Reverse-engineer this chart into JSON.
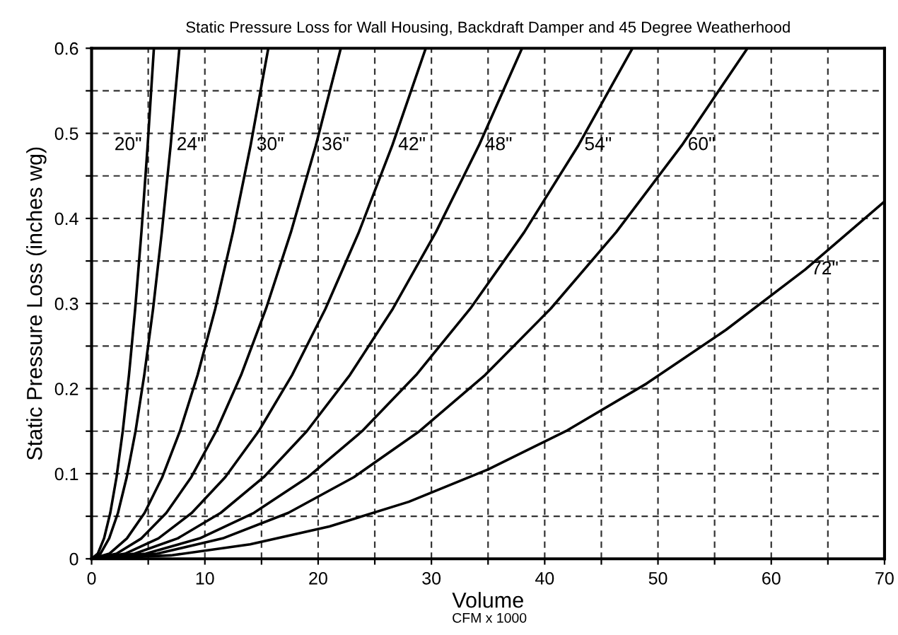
{
  "chart_data": {
    "type": "line",
    "title": "Static Pressure Loss for Wall Housing, Backdraft Damper and 45 Degree Weatherhood",
    "xlabel": "Volume",
    "ylabel": "Static Pressure Loss (inches wg)",
    "xlim": [
      0,
      70
    ],
    "ylim": [
      0,
      0.6
    ],
    "xticks": [
      0,
      {
        "value": 5,
        "label": null
      },
      10,
      {
        "value": 15,
        "label": null
      },
      20,
      {
        "value": 25,
        "label": null
      },
      30,
      {
        "value": 35,
        "label": null
      },
      40,
      {
        "value": 45,
        "label": null
      },
      50,
      {
        "value": 55,
        "label": null
      },
      60,
      {
        "value": 65,
        "label": null
      },
      70
    ],
    "yticks": [
      0,
      {
        "value": 0.05,
        "label": null
      },
      0.1,
      {
        "value": 0.15,
        "label": null
      },
      0.2,
      {
        "value": 0.25,
        "label": null
      },
      0.3,
      {
        "value": 0.35,
        "label": null
      },
      0.4,
      {
        "value": 0.45,
        "label": null
      },
      0.5,
      {
        "value": 0.55,
        "label": null
      },
      0.6
    ],
    "grid": true,
    "line_style": "solid",
    "marker": "none",
    "series": [
      {
        "name": "20\"",
        "color": "#000000",
        "x": [
          0,
          0.55,
          1.1,
          1.65,
          2.2,
          2.75,
          3.3,
          3.85,
          4.4,
          4.95,
          5.5
        ],
        "values": [
          0,
          0.006,
          0.024,
          0.054,
          0.096,
          0.15,
          0.216,
          0.294,
          0.384,
          0.486,
          0.6
        ]
      },
      {
        "name": "24\"",
        "color": "#000000",
        "x": [
          0,
          0.78,
          1.55,
          2.33,
          3.1,
          3.88,
          4.65,
          5.43,
          6.2,
          6.98,
          7.75
        ],
        "values": [
          0,
          0.006,
          0.024,
          0.054,
          0.096,
          0.15,
          0.216,
          0.294,
          0.384,
          0.486,
          0.6
        ]
      },
      {
        "name": "30\"",
        "color": "#000000",
        "x": [
          0,
          1.56,
          3.12,
          4.68,
          6.24,
          7.8,
          9.36,
          10.92,
          12.48,
          14.04,
          15.6
        ],
        "values": [
          0,
          0.006,
          0.024,
          0.054,
          0.096,
          0.15,
          0.216,
          0.294,
          0.384,
          0.486,
          0.6
        ]
      },
      {
        "name": "36\"",
        "color": "#000000",
        "x": [
          0,
          2.2,
          4.4,
          6.6,
          8.8,
          11,
          13.2,
          15.4,
          17.6,
          19.8,
          22
        ],
        "values": [
          0,
          0.006,
          0.024,
          0.054,
          0.096,
          0.15,
          0.216,
          0.294,
          0.384,
          0.486,
          0.6
        ]
      },
      {
        "name": "42\"",
        "color": "#000000",
        "x": [
          0,
          2.95,
          5.9,
          8.85,
          11.8,
          14.75,
          17.7,
          20.65,
          23.6,
          26.55,
          29.5
        ],
        "values": [
          0,
          0.006,
          0.024,
          0.054,
          0.096,
          0.15,
          0.216,
          0.294,
          0.384,
          0.486,
          0.6
        ]
      },
      {
        "name": "48\"",
        "color": "#000000",
        "x": [
          0,
          3.8,
          7.6,
          11.4,
          15.2,
          19,
          22.8,
          26.6,
          30.4,
          34.2,
          38
        ],
        "values": [
          0,
          0.006,
          0.024,
          0.054,
          0.096,
          0.15,
          0.216,
          0.294,
          0.384,
          0.486,
          0.6
        ]
      },
      {
        "name": "54\"",
        "color": "#000000",
        "x": [
          0,
          4.78,
          9.55,
          14.33,
          19.1,
          23.88,
          28.65,
          33.43,
          38.2,
          42.98,
          47.75
        ],
        "values": [
          0,
          0.006,
          0.024,
          0.054,
          0.096,
          0.15,
          0.216,
          0.294,
          0.384,
          0.486,
          0.6
        ]
      },
      {
        "name": "60\"",
        "color": "#000000",
        "x": [
          0,
          5.79,
          11.58,
          17.37,
          23.16,
          28.95,
          34.74,
          40.53,
          46.32,
          52.11,
          57.9
        ],
        "values": [
          0,
          0.006,
          0.024,
          0.054,
          0.096,
          0.15,
          0.216,
          0.294,
          0.384,
          0.486,
          0.6
        ]
      },
      {
        "name": "72\"",
        "color": "#000000",
        "x": [
          0,
          7,
          14,
          21,
          28,
          35,
          42,
          49,
          56,
          63,
          70
        ],
        "values": [
          0,
          0.004,
          0.017,
          0.038,
          0.067,
          0.105,
          0.151,
          0.206,
          0.269,
          0.34,
          0.42
        ]
      }
    ],
    "annotations": [
      "CFM x 1000"
    ]
  }
}
